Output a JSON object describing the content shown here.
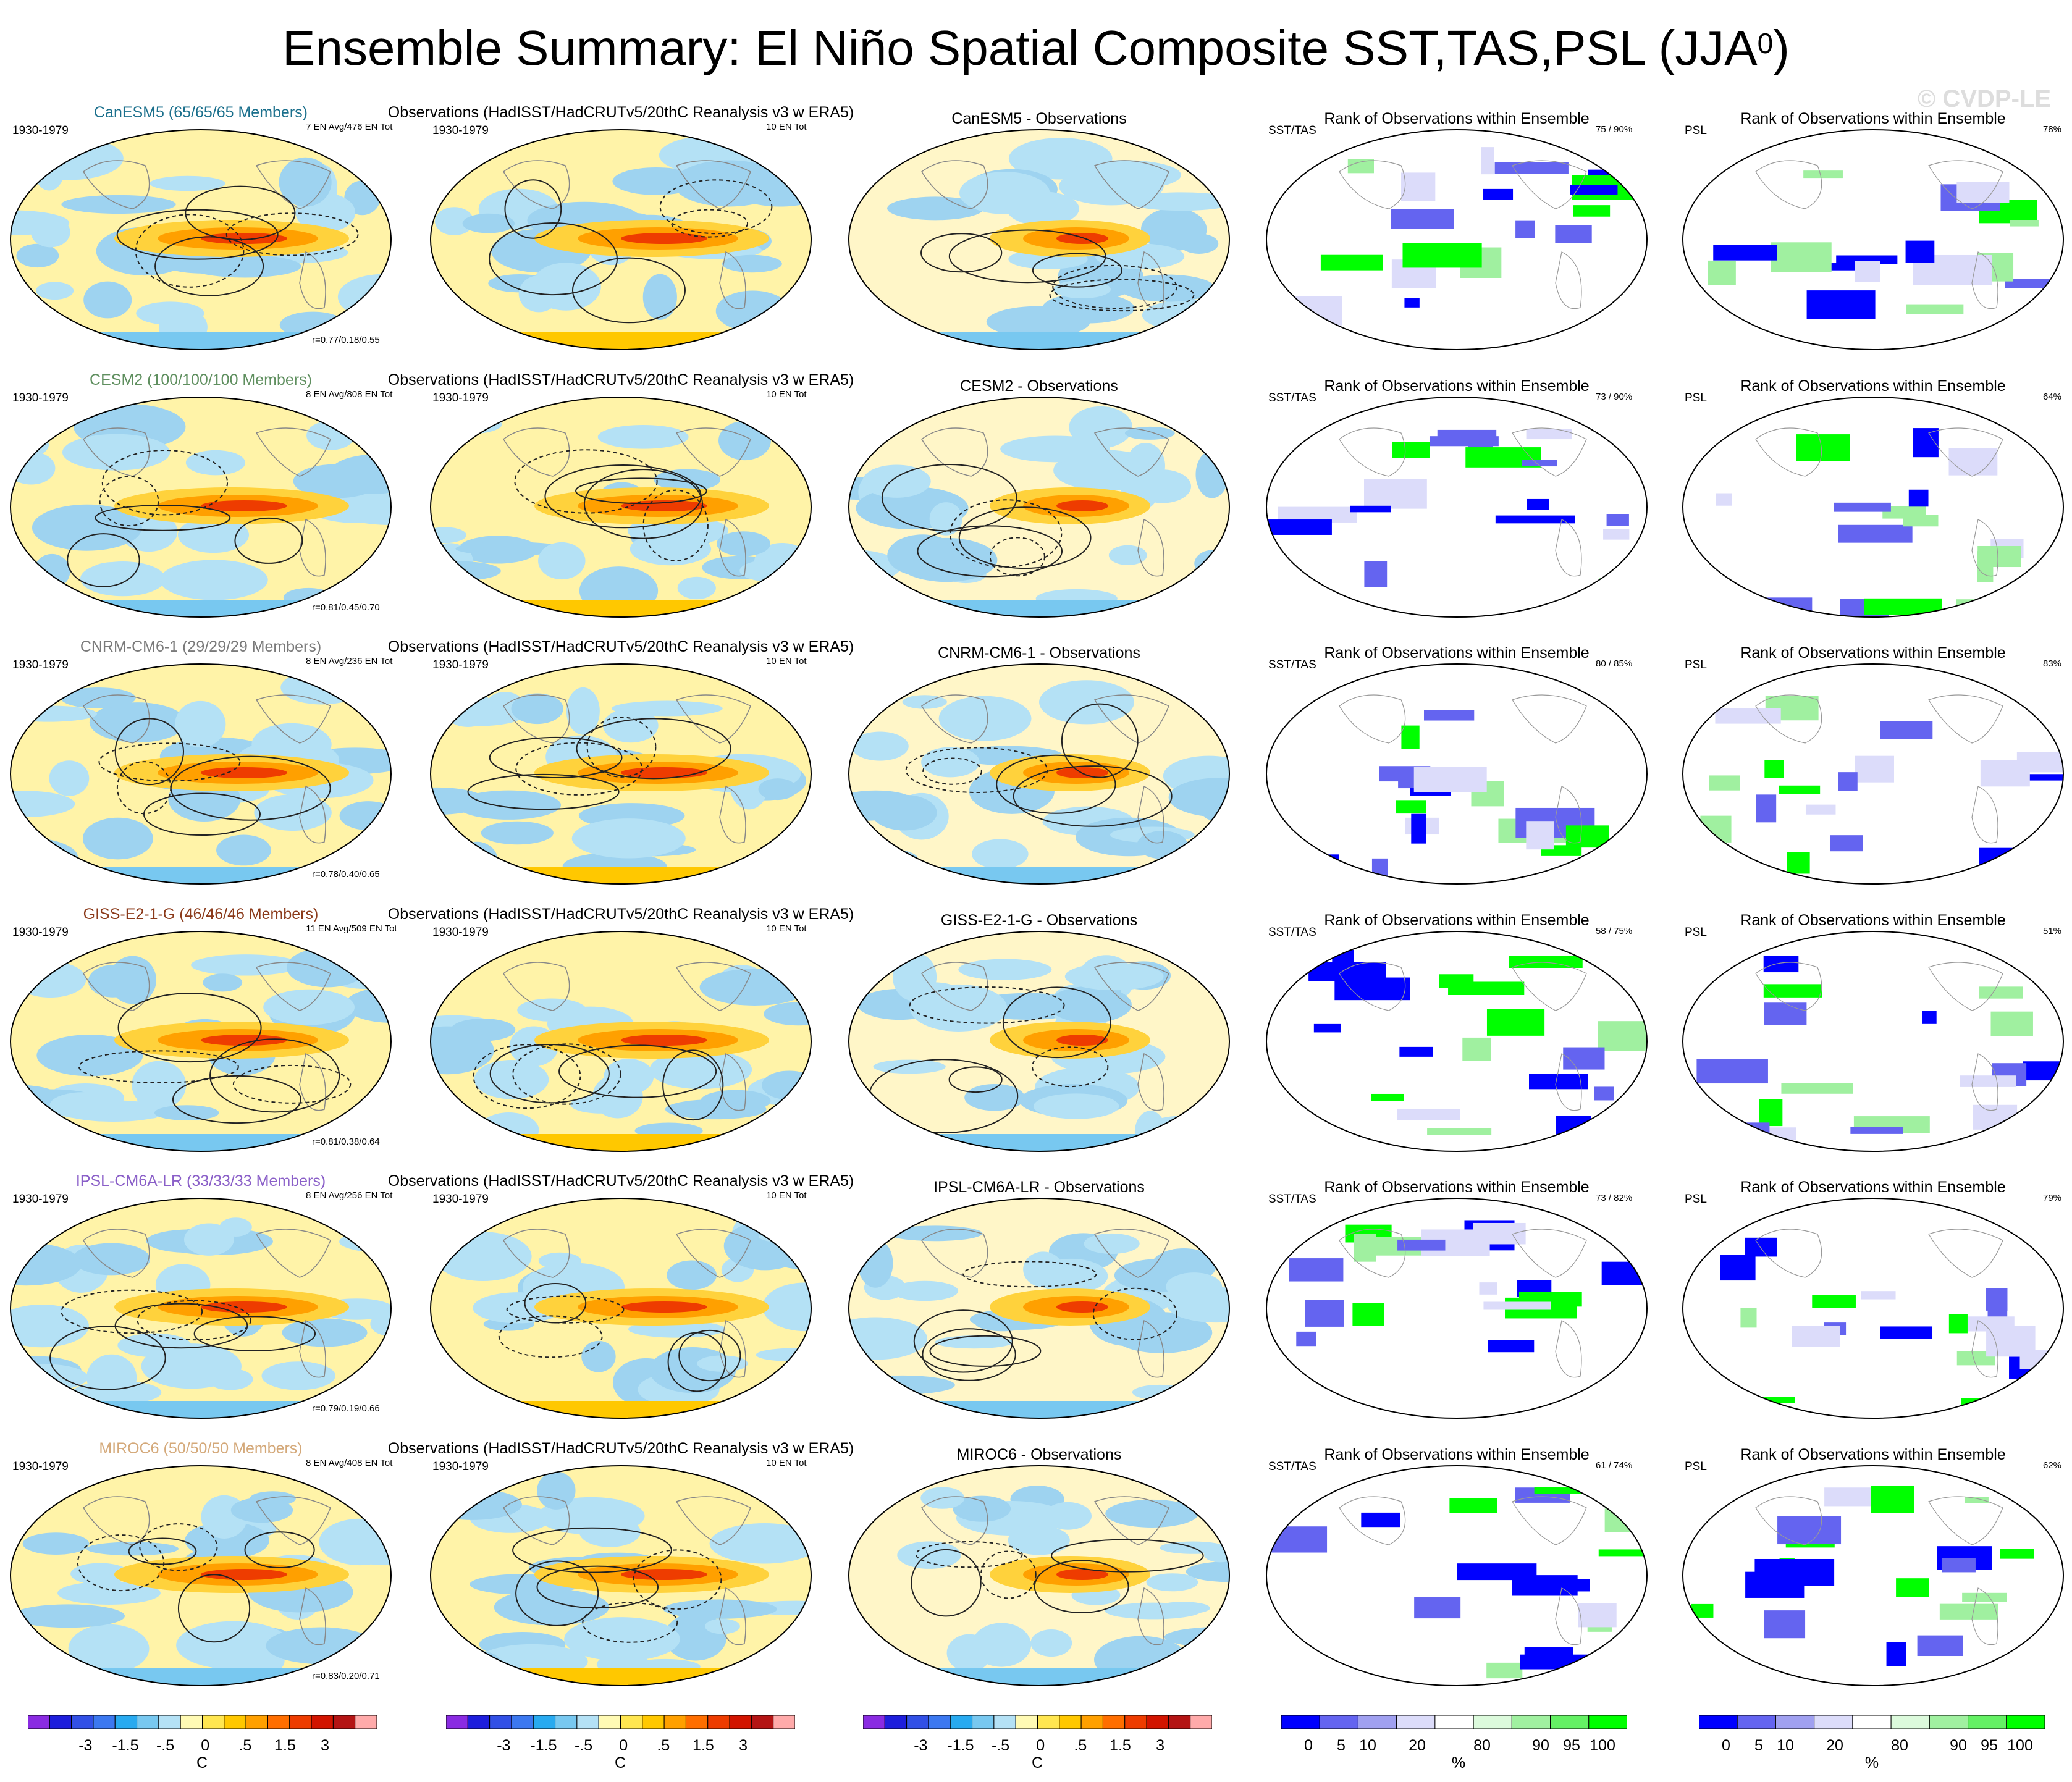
{
  "page": {
    "title_main": "Ensemble Summary: El Niño Spatial Composite SST,TAS,PSL (JJA",
    "title_sup": "0",
    "title_close": ")",
    "watermark": "© CVDP-LE"
  },
  "common": {
    "period": "1930-1979",
    "obs_title": "Observations (HadISST/HadCRUTv5/20thC Reanalysis v3 w ERA5)",
    "obs_count": "10 EN Tot",
    "rank_title": "Rank of Observations within Ensemble",
    "sst_tas_label": "SST/TAS",
    "psl_label": "PSL"
  },
  "rows": [
    {
      "model_title": "CanESM5 (65/65/65 Members)",
      "model_color": "#1a6f8c",
      "ens_count": "7 EN Avg/476 EN Tot",
      "corr": "r=0.77/0.18/0.55",
      "diff_title": "CanESM5 - Observations",
      "sst_rank": "75 /  90%",
      "psl_rank": "78%"
    },
    {
      "model_title": "CESM2 (100/100/100 Members)",
      "model_color": "#5f8f5f",
      "ens_count": "8 EN Avg/808 EN Tot",
      "corr": "r=0.81/0.45/0.70",
      "diff_title": "CESM2 - Observations",
      "sst_rank": "73 /  90%",
      "psl_rank": "64%"
    },
    {
      "model_title": "CNRM-CM6-1 (29/29/29 Members)",
      "model_color": "#7a7a7a",
      "ens_count": "8 EN Avg/236 EN Tot",
      "corr": "r=0.78/0.40/0.65",
      "diff_title": "CNRM-CM6-1 - Observations",
      "sst_rank": "80 /  85%",
      "psl_rank": "83%"
    },
    {
      "model_title": "GISS-E2-1-G (46/46/46 Members)",
      "model_color": "#8b3a1a",
      "ens_count": "11 EN Avg/509 EN Tot",
      "corr": "r=0.81/0.38/0.64",
      "diff_title": "GISS-E2-1-G - Observations",
      "sst_rank": "58 /  75%",
      "psl_rank": "51%"
    },
    {
      "model_title": "IPSL-CM6A-LR (33/33/33 Members)",
      "model_color": "#8a5fc8",
      "ens_count": "8 EN Avg/256 EN Tot",
      "corr": "r=0.79/0.19/0.66",
      "diff_title": "IPSL-CM6A-LR - Observations",
      "sst_rank": "73 /  82%",
      "psl_rank": "79%"
    },
    {
      "model_title": "MIROC6 (50/50/50 Members)",
      "model_color": "#d4a97a",
      "ens_count": "8 EN Avg/408 EN Tot",
      "corr": "r=0.83/0.20/0.71",
      "diff_title": "MIROC6 - Observations",
      "sst_rank": "61 /  74%",
      "psl_rank": "62%"
    }
  ],
  "colorbars": {
    "temp": {
      "ticks": [
        "-3",
        "-1.5",
        "-.5",
        "0",
        ".5",
        "1.5",
        "3"
      ],
      "unit": "C",
      "colors": [
        "#8a2be2",
        "#1e1edc",
        "#3250e6",
        "#3c78f0",
        "#28aaf0",
        "#78c8f0",
        "#b4e1f5",
        "#fffab4",
        "#ffe650",
        "#ffc800",
        "#ffa000",
        "#ff6e00",
        "#ee3c00",
        "#d21400",
        "#b41414",
        "#ffaaaa"
      ]
    },
    "rank": {
      "ticks": [
        "0",
        "5",
        "10",
        "20",
        "80",
        "90",
        "95",
        "100"
      ],
      "unit": "%",
      "colors": [
        "#0000ff",
        "#6464f0",
        "#a0a0f0",
        "#dcdcfa",
        "#ffffff",
        "#dcfadc",
        "#a0f0a0",
        "#64f064",
        "#00ff00"
      ]
    }
  }
}
